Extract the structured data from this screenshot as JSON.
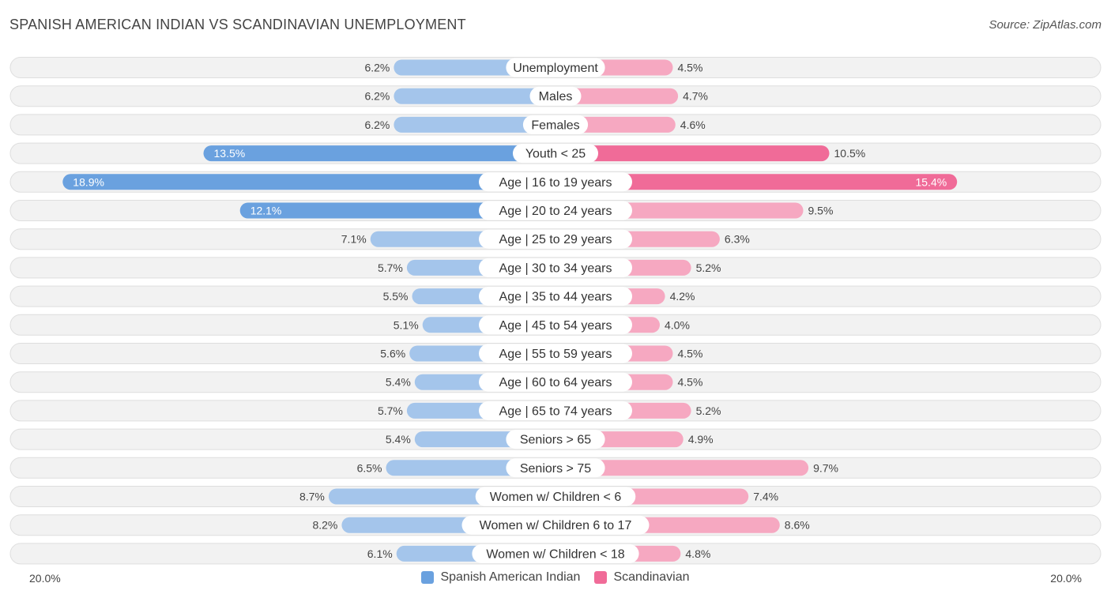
{
  "header": {
    "title": "SPANISH AMERICAN INDIAN VS SCANDINAVIAN UNEMPLOYMENT",
    "source": "Source: ZipAtlas.com"
  },
  "colors": {
    "left_light": "#a4c5eb",
    "left_strong": "#6aa1df",
    "right_light": "#f6a8c1",
    "right_strong": "#f06b98",
    "row_bg": "#f2f2f2",
    "row_border": "#dedede"
  },
  "chart_data": {
    "type": "bar",
    "orientation": "horizontal-diverging",
    "title": "SPANISH AMERICAN INDIAN VS SCANDINAVIAN UNEMPLOYMENT",
    "xlim": [
      -20,
      20
    ],
    "axis_min_label": "20.0%",
    "axis_max_label": "20.0%",
    "categories": [
      "Unemployment",
      "Males",
      "Females",
      "Youth < 25",
      "Age | 16 to 19 years",
      "Age | 20 to 24 years",
      "Age | 25 to 29 years",
      "Age | 30 to 34 years",
      "Age | 35 to 44 years",
      "Age | 45 to 54 years",
      "Age | 55 to 59 years",
      "Age | 60 to 64 years",
      "Age | 65 to 74 years",
      "Seniors > 65",
      "Seniors > 75",
      "Women w/ Children < 6",
      "Women w/ Children 6 to 17",
      "Women w/ Children < 18"
    ],
    "series": [
      {
        "name": "Spanish American Indian",
        "values": [
          6.2,
          6.2,
          6.2,
          13.5,
          18.9,
          12.1,
          7.1,
          5.7,
          5.5,
          5.1,
          5.6,
          5.4,
          5.7,
          5.4,
          6.5,
          8.7,
          8.2,
          6.1
        ],
        "labels": [
          "6.2%",
          "6.2%",
          "6.2%",
          "13.5%",
          "18.9%",
          "12.1%",
          "7.1%",
          "5.7%",
          "5.5%",
          "5.1%",
          "5.6%",
          "5.4%",
          "5.7%",
          "5.4%",
          "6.5%",
          "8.7%",
          "8.2%",
          "6.1%"
        ]
      },
      {
        "name": "Scandinavian",
        "values": [
          4.5,
          4.7,
          4.6,
          10.5,
          15.4,
          9.5,
          6.3,
          5.2,
          4.2,
          4.0,
          4.5,
          4.5,
          5.2,
          4.9,
          9.7,
          7.4,
          8.6,
          4.8
        ],
        "labels": [
          "4.5%",
          "4.7%",
          "4.6%",
          "10.5%",
          "15.4%",
          "9.5%",
          "6.3%",
          "5.2%",
          "4.2%",
          "4.0%",
          "4.5%",
          "4.5%",
          "5.2%",
          "4.9%",
          "9.7%",
          "7.4%",
          "8.6%",
          "4.8%"
        ]
      }
    ],
    "legend": [
      "Spanish American Indian",
      "Scandinavian"
    ],
    "legend_position": "bottom-center"
  }
}
